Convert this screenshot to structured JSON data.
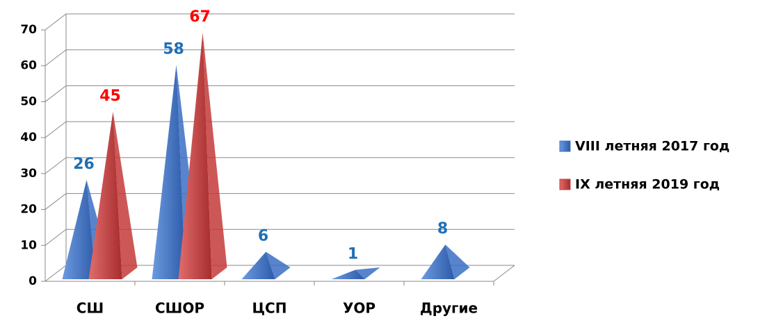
{
  "chart_data": {
    "type": "bar3d",
    "categories": [
      "СШ",
      "СШОР",
      "ЦСП",
      "УОР",
      "Другие"
    ],
    "series": [
      {
        "name": "VIII летняя 2017 год",
        "color": "#3a6fc4",
        "values": [
          26,
          58,
          6,
          1,
          8
        ]
      },
      {
        "name": "IX летняя 2019 год",
        "color": "#c43a3a",
        "values": [
          45,
          67,
          null,
          null,
          null
        ]
      }
    ],
    "label_colors": [
      "#1f6fb5",
      "#ff0000"
    ],
    "ylim": [
      0,
      70
    ],
    "yticks": [
      0,
      10,
      20,
      30,
      40,
      50,
      60,
      70
    ],
    "grid": true,
    "legend": "right"
  }
}
